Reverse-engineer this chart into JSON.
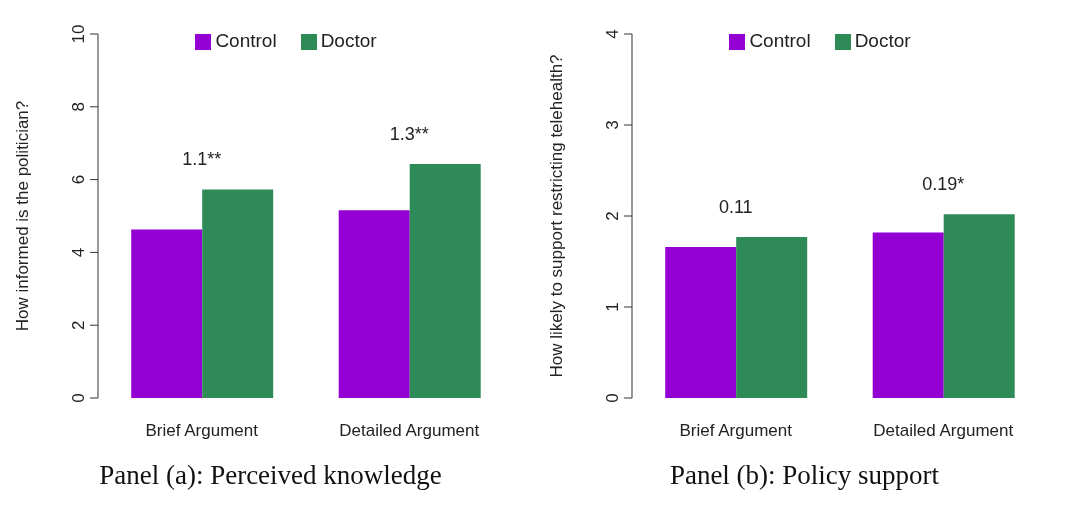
{
  "chart_data": [
    {
      "type": "bar",
      "title": "Panel (a): Perceived knowledge",
      "ylabel": "How informed is the politician?",
      "categories": [
        "Brief Argument",
        "Detailed Argument"
      ],
      "series": [
        {
          "name": "Control",
          "color": "#9400d3",
          "values": [
            4.63,
            5.16
          ]
        },
        {
          "name": "Doctor",
          "color": "#2e8b57",
          "values": [
            5.73,
            6.43
          ]
        }
      ],
      "ylim": [
        0,
        10
      ],
      "yticks": [
        0,
        2,
        4,
        6,
        8,
        10
      ],
      "grid": false,
      "legend": "top",
      "annotations": [
        "1.1**",
        "1.3**"
      ]
    },
    {
      "type": "bar",
      "title": "Panel (b): Policy support",
      "ylabel": "How likely to support restricting telehealth?",
      "categories": [
        "Brief Argument",
        "Detailed Argument"
      ],
      "series": [
        {
          "name": "Control",
          "color": "#9400d3",
          "values": [
            1.66,
            1.82
          ]
        },
        {
          "name": "Doctor",
          "color": "#2e8b57",
          "values": [
            1.77,
            2.02
          ]
        }
      ],
      "ylim": [
        0,
        4
      ],
      "yticks": [
        0,
        1,
        2,
        3,
        4
      ],
      "grid": false,
      "legend": "top",
      "annotations": [
        "0.11",
        "0.19*"
      ]
    }
  ]
}
